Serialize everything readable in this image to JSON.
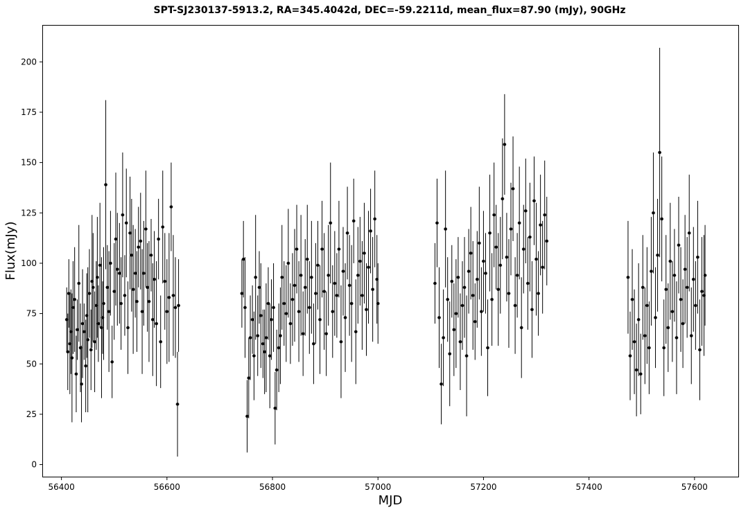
{
  "chart_data": {
    "type": "scatter",
    "title": "SPT-SJ230137-5913.2, RA=345.4042d, DEC=-59.2211d, mean_flux=87.90 (mJy), 90GHz",
    "xlabel": "MJD",
    "ylabel": "Flux(mJy)",
    "xlim": [
      56365,
      57683
    ],
    "ylim": [
      -6,
      218
    ],
    "xticks": [
      56400,
      56600,
      56800,
      57000,
      57200,
      57400,
      57600
    ],
    "yticks": [
      0,
      25,
      50,
      75,
      100,
      125,
      150,
      175,
      200
    ],
    "grid": false,
    "legend": "none",
    "marker": "circle",
    "color": "#000000",
    "series": [
      {
        "x": [
          56410,
          56412,
          56414,
          56416,
          56418,
          56420,
          56422,
          56425,
          56428,
          56430,
          56433,
          56436,
          56438,
          56440,
          56443,
          56446,
          56448,
          56450,
          56453,
          56456,
          56458,
          56460,
          56463,
          56466,
          56468,
          56470,
          56473,
          56476,
          56478,
          56480,
          56484,
          56487,
          56490,
          56493,
          56496,
          56500,
          56503,
          56506,
          56510,
          56513,
          56516,
          56520,
          56523,
          56526,
          56530,
          56533,
          56536,
          56540,
          56543,
          56546,
          56550,
          56553,
          56556,
          56560,
          56563,
          56566,
          56570,
          56573,
          56576,
          56580,
          56584,
          56588,
          56592,
          56596,
          56600,
          56604,
          56608,
          56612,
          56616,
          56620,
          56622
        ],
        "y": [
          72,
          56,
          85,
          60,
          66,
          53,
          78,
          82,
          45,
          67,
          90,
          58,
          40,
          70,
          66,
          49,
          74,
          62,
          85,
          57,
          91,
          88,
          61,
          79,
          93,
          70,
          99,
          68,
          73,
          80,
          139,
          88,
          76,
          100,
          51,
          86,
          112,
          97,
          95,
          80,
          124,
          84,
          120,
          68,
          115,
          104,
          87,
          95,
          81,
          108,
          111,
          76,
          95,
          117,
          88,
          81,
          104,
          72,
          92,
          70,
          112,
          61,
          118,
          91,
          76,
          83,
          128,
          84,
          78,
          30,
          79
        ],
        "yerr": [
          16,
          19,
          17,
          25,
          21,
          32,
          23,
          26,
          19,
          15,
          29,
          22,
          19,
          27,
          14,
          23,
          21,
          36,
          22,
          20,
          33,
          27,
          25,
          22,
          30,
          19,
          31,
          35,
          18,
          28,
          42,
          21,
          30,
          26,
          18,
          24,
          33,
          28,
          25,
          23,
          31,
          20,
          27,
          23,
          28,
          28,
          32,
          22,
          25,
          20,
          24,
          31,
          26,
          29,
          22,
          30,
          18,
          28,
          24,
          31,
          20,
          23,
          28,
          24,
          26,
          32,
          22,
          30,
          25,
          26,
          23
        ]
      },
      {
        "x": [
          56742,
          56745,
          56748,
          56752,
          56755,
          56758,
          56762,
          56765,
          56768,
          56772,
          56775,
          56778,
          56782,
          56785,
          56788,
          56792,
          56795,
          56798,
          56802,
          56805,
          56808,
          56812,
          56815,
          56818,
          56822,
          56826,
          56830,
          56834,
          56838,
          56842,
          56846,
          56850,
          56854,
          56858,
          56862,
          56866,
          56870,
          56874,
          56878,
          56882,
          56886,
          56890,
          56894,
          56898,
          56902,
          56906,
          56910,
          56914,
          56918,
          56922,
          56926,
          56930,
          56934,
          56938,
          56942,
          56946,
          56950,
          56954,
          56958,
          56962,
          56966,
          56970,
          56974,
          56978,
          56982,
          56986,
          56990,
          56994,
          56998,
          57000
        ],
        "y": [
          85,
          102,
          78,
          24,
          43,
          63,
          72,
          54,
          93,
          64,
          88,
          74,
          60,
          56,
          63,
          80,
          54,
          72,
          78,
          28,
          47,
          58,
          64,
          93,
          80,
          75,
          100,
          70,
          82,
          89,
          107,
          76,
          94,
          65,
          88,
          102,
          78,
          93,
          60,
          85,
          99,
          72,
          107,
          86,
          65,
          94,
          120,
          76,
          90,
          84,
          107,
          61,
          96,
          73,
          115,
          89,
          80,
          121,
          66,
          94,
          101,
          84,
          105,
          77,
          98,
          116,
          87,
          122,
          92,
          80
        ],
        "yerr": [
          17,
          19,
          25,
          18,
          20,
          21,
          17,
          22,
          31,
          20,
          18,
          26,
          17,
          21,
          27,
          18,
          26,
          20,
          22,
          18,
          20,
          22,
          24,
          26,
          21,
          24,
          27,
          20,
          23,
          28,
          22,
          25,
          30,
          21,
          24,
          27,
          23,
          28,
          20,
          25,
          22,
          27,
          24,
          29,
          21,
          25,
          30,
          23,
          26,
          21,
          24,
          28,
          22,
          27,
          23,
          25,
          29,
          21,
          26,
          24,
          22,
          27,
          25,
          23,
          28,
          21,
          26,
          24,
          22,
          20
        ]
      },
      {
        "x": [
          57108,
          57112,
          57116,
          57120,
          57124,
          57128,
          57132,
          57136,
          57140,
          57144,
          57148,
          57152,
          57156,
          57160,
          57164,
          57168,
          57172,
          57176,
          57180,
          57184,
          57188,
          57192,
          57196,
          57200,
          57204,
          57208,
          57212,
          57216,
          57220,
          57224,
          57228,
          57232,
          57236,
          57240,
          57244,
          57248,
          57252,
          57256,
          57260,
          57264,
          57268,
          57272,
          57276,
          57280,
          57284,
          57288,
          57292,
          57296,
          57300,
          57304,
          57308,
          57312,
          57316,
          57320
        ],
        "y": [
          90,
          120,
          73,
          40,
          63,
          117,
          82,
          55,
          91,
          67,
          75,
          93,
          61,
          79,
          88,
          54,
          96,
          105,
          84,
          71,
          92,
          110,
          76,
          101,
          95,
          58,
          115,
          82,
          124,
          108,
          87,
          99,
          132,
          159,
          103,
          85,
          117,
          137,
          79,
          94,
          120,
          68,
          107,
          126,
          90,
          113,
          77,
          131,
          102,
          85,
          119,
          98,
          124,
          111
        ],
        "yerr": [
          20,
          22,
          25,
          20,
          24,
          29,
          21,
          26,
          18,
          23,
          27,
          20,
          24,
          22,
          25,
          30,
          21,
          23,
          27,
          19,
          24,
          28,
          22,
          25,
          20,
          24,
          29,
          23,
          26,
          21,
          28,
          24,
          30,
          25,
          22,
          27,
          23,
          26,
          24,
          21,
          28,
          25,
          22,
          26,
          23,
          27,
          24,
          22,
          28,
          21,
          25,
          23,
          27,
          22
        ]
      },
      {
        "x": [
          57474,
          57478,
          57482,
          57486,
          57490,
          57494,
          57498,
          57502,
          57506,
          57510,
          57514,
          57518,
          57522,
          57526,
          57530,
          57534,
          57538,
          57542,
          57546,
          57550,
          57554,
          57558,
          57562,
          57566,
          57570,
          57574,
          57578,
          57582,
          57586,
          57590,
          57594,
          57598,
          57602,
          57606,
          57610,
          57614,
          57618,
          57620
        ],
        "y": [
          93,
          54,
          82,
          61,
          47,
          72,
          45,
          88,
          64,
          79,
          58,
          96,
          125,
          73,
          104,
          155,
          122,
          58,
          87,
          68,
          101,
          76,
          94,
          63,
          109,
          82,
          70,
          97,
          88,
          115,
          64,
          92,
          79,
          103,
          57,
          86,
          84,
          94
        ],
        "yerr": [
          28,
          22,
          25,
          26,
          23,
          28,
          20,
          26,
          24,
          29,
          23,
          27,
          30,
          25,
          28,
          52,
          31,
          24,
          27,
          22,
          29,
          25,
          23,
          28,
          24,
          26,
          22,
          27,
          25,
          29,
          24,
          26,
          22,
          28,
          25,
          27,
          30,
          25
        ]
      }
    ]
  }
}
